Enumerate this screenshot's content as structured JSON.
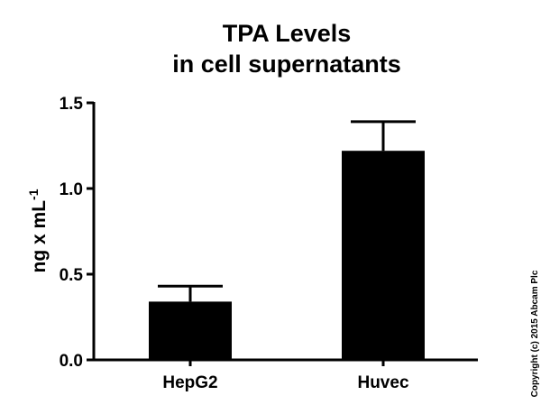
{
  "chart_data": {
    "type": "bar",
    "title": [
      "TPA Levels",
      "in cell supernatants"
    ],
    "ylabel": "ng x mL",
    "ylabel_sup": "-1",
    "xlabel": "",
    "categories": [
      "HepG2",
      "Huvec"
    ],
    "values": [
      0.34,
      1.22
    ],
    "error_upper": [
      0.43,
      1.39
    ],
    "ylim": [
      0,
      1.5
    ],
    "yticks": [
      0.0,
      0.5,
      1.0,
      1.5
    ],
    "ytick_labels": [
      "0.0",
      "0.5",
      "1.0",
      "1.5"
    ],
    "grid": false,
    "legend": "none",
    "bar_color": "#000000",
    "error_color": "#000000"
  },
  "copyright": "Copyright (c) 2015 Abcam Plc"
}
